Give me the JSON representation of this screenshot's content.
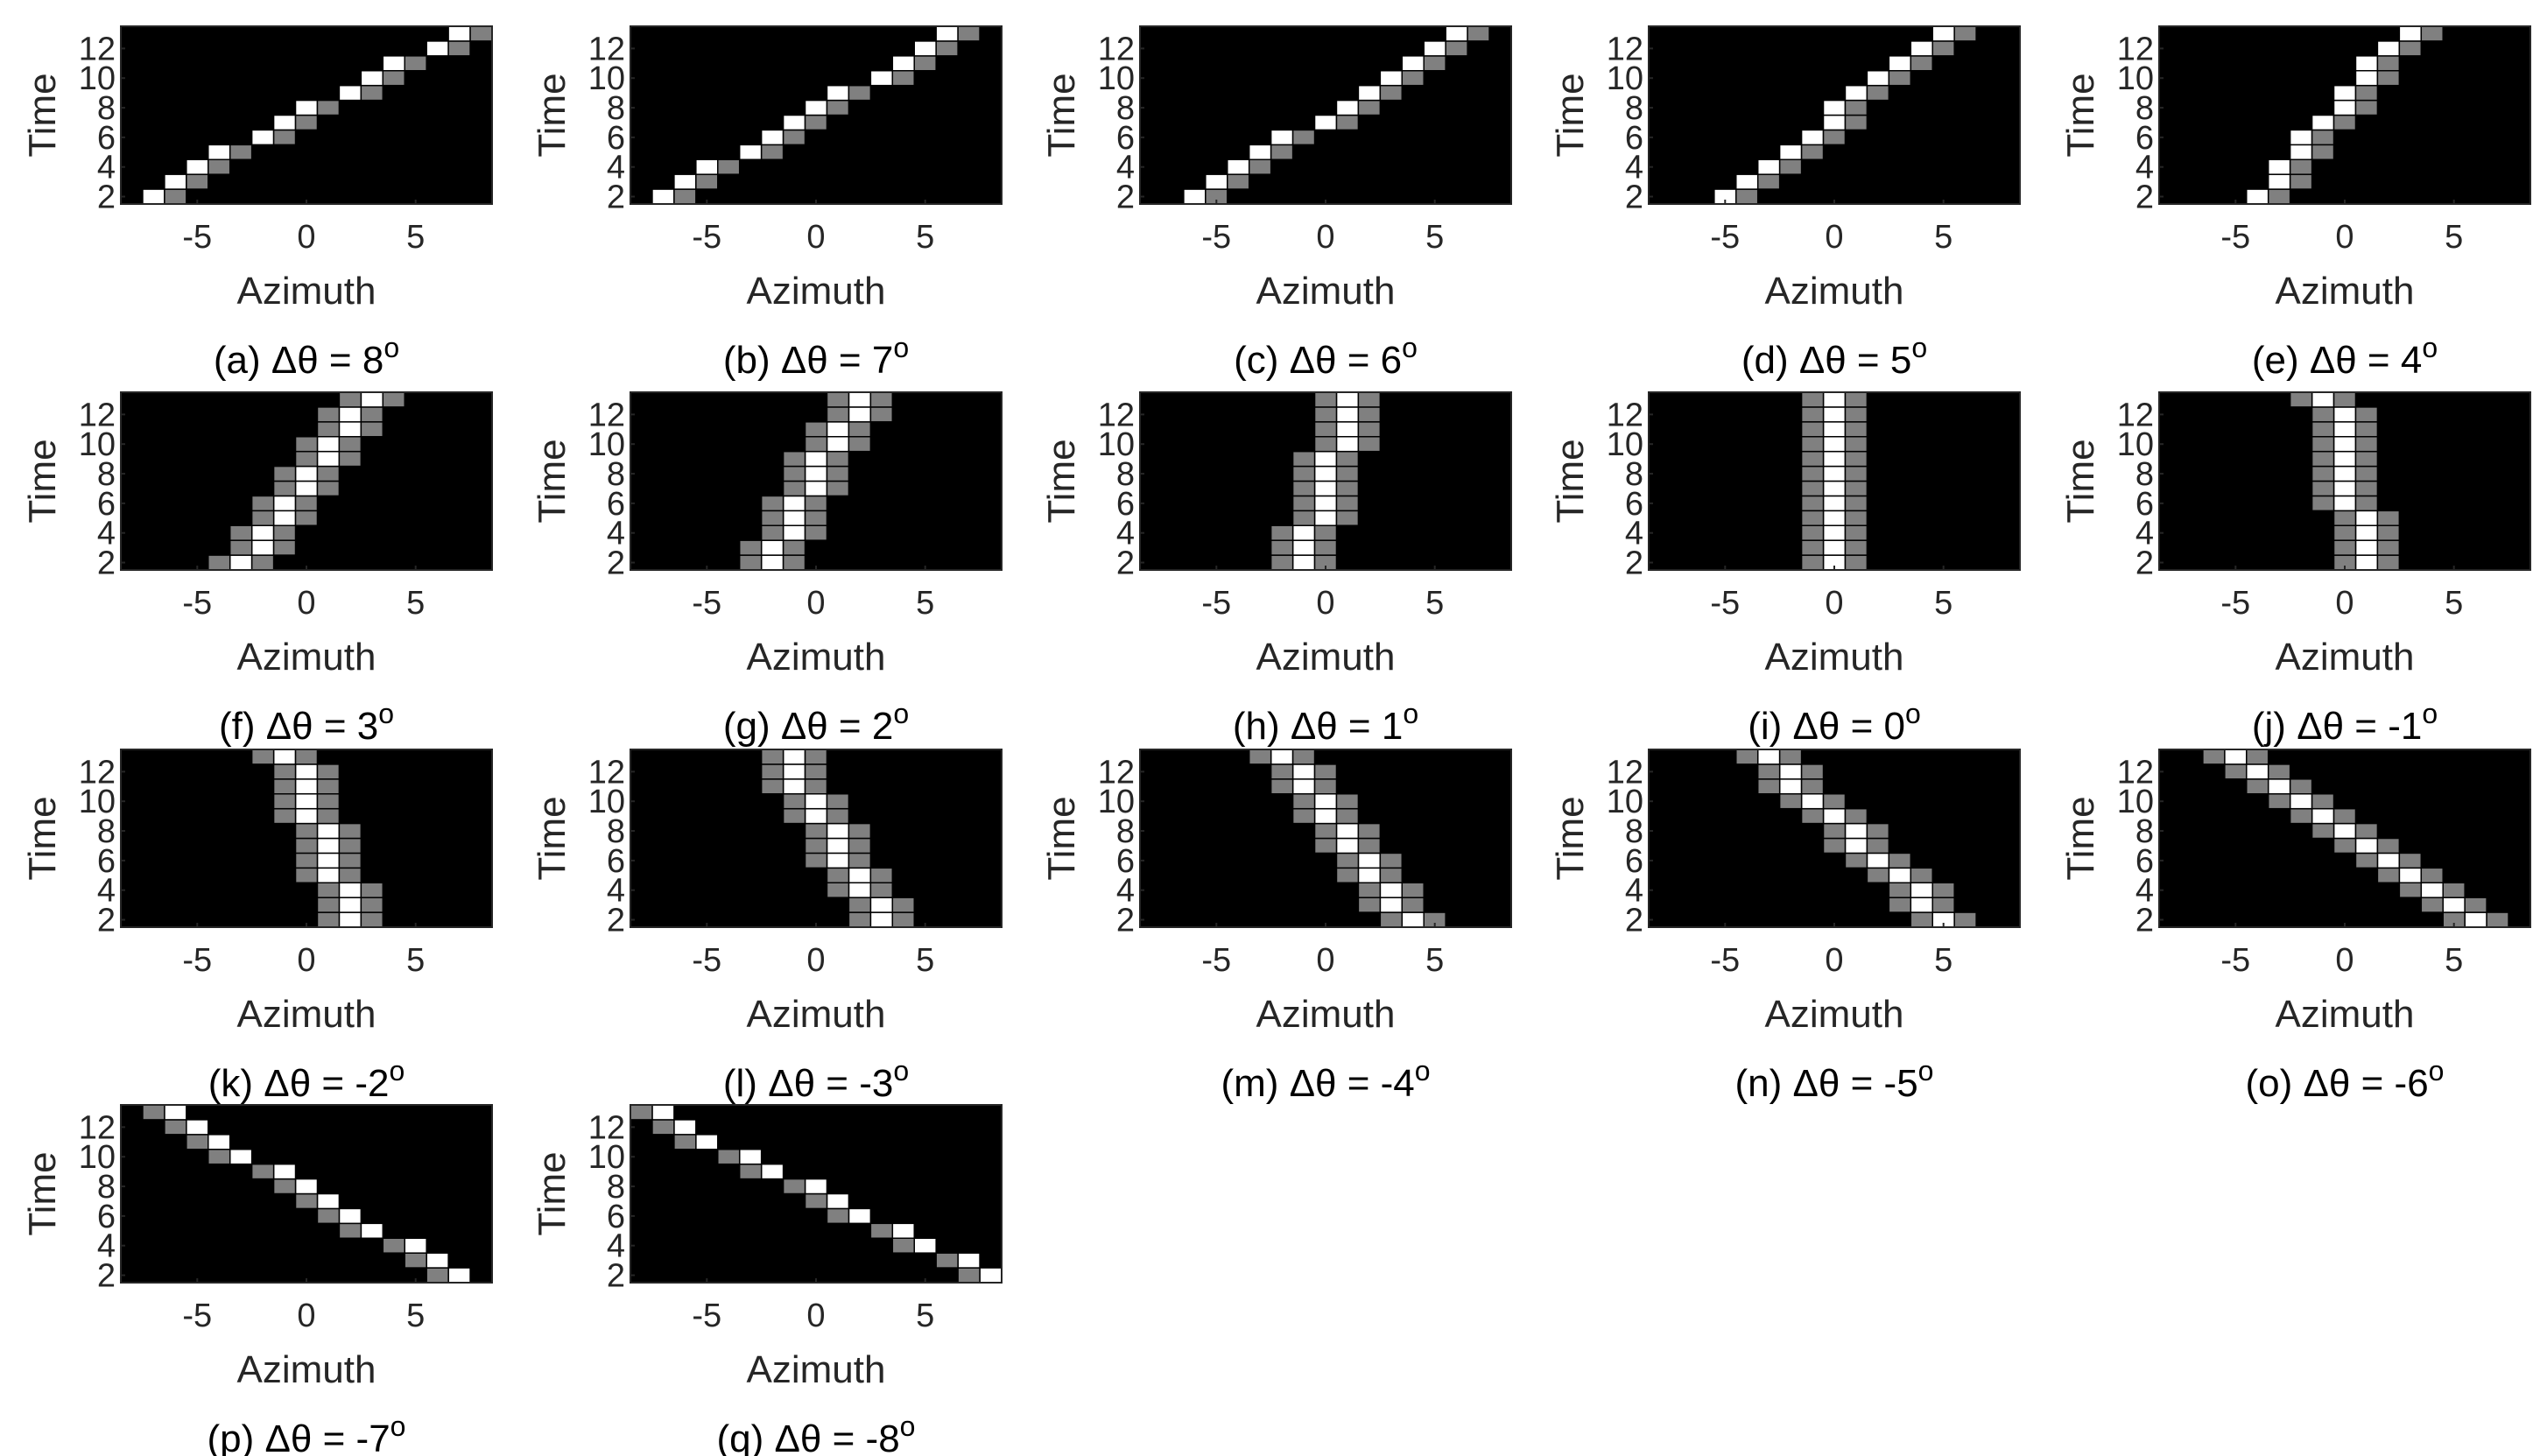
{
  "figure": {
    "xlabel": "Azimuth",
    "ylabel": "Time",
    "caption_prefix": "Δθ = ",
    "caption_degree": "o"
  },
  "chart_data": {
    "type": "heatmap",
    "xlim": [
      -8.5,
      8.5
    ],
    "ylim": [
      1.5,
      13.5
    ],
    "xticks": [
      -5,
      0,
      5
    ],
    "yticks": [
      2,
      4,
      6,
      8,
      10,
      12
    ],
    "x_step": 1,
    "time_steps": [
      2,
      3,
      4,
      5,
      6,
      7,
      8,
      9,
      10,
      11,
      12,
      13
    ],
    "cell_levels": {
      "background": 0,
      "neighbor": 0.5,
      "peak": 1
    },
    "colors": {
      "background": "#000000",
      "neighbor": "#808080",
      "peak": "#ffffff"
    },
    "panels": [
      {
        "label": "(a)",
        "delta": "8",
        "slope": 1.3,
        "peak_at_t2": -7.5,
        "neighbors": "right"
      },
      {
        "label": "(b)",
        "delta": "7",
        "slope": 1.2,
        "peak_at_t2": -7,
        "neighbors": "right"
      },
      {
        "label": "(c)",
        "delta": "6",
        "slope": 1.1,
        "peak_at_t2": -6,
        "neighbors": "right"
      },
      {
        "label": "(d)",
        "delta": "5",
        "slope": 0.9,
        "peak_at_t2": -5,
        "neighbors": "right"
      },
      {
        "label": "(e)",
        "delta": "4",
        "slope": 0.6,
        "peak_at_t2": -4,
        "neighbors": "right"
      },
      {
        "label": "(f)",
        "delta": "3",
        "slope": 0.5,
        "peak_at_t2": -3,
        "neighbors": "both"
      },
      {
        "label": "(g)",
        "delta": "2",
        "slope": 0.35,
        "peak_at_t2": -2,
        "neighbors": "both"
      },
      {
        "label": "(h)",
        "delta": "1",
        "slope": 0.2,
        "peak_at_t2": -1,
        "neighbors": "both"
      },
      {
        "label": "(i)",
        "delta": "0",
        "slope": 0,
        "peak_at_t2": 0,
        "neighbors": "both"
      },
      {
        "label": "(j)",
        "delta": "-1",
        "slope": -0.15,
        "peak_at_t2": 1,
        "neighbors": "both"
      },
      {
        "label": "(k)",
        "delta": "-2",
        "slope": -0.25,
        "peak_at_t2": 2,
        "neighbors": "both"
      },
      {
        "label": "(l)",
        "delta": "-3",
        "slope": -0.4,
        "peak_at_t2": 3,
        "neighbors": "both"
      },
      {
        "label": "(m)",
        "delta": "-4",
        "slope": -0.55,
        "peak_at_t2": 4,
        "neighbors": "both"
      },
      {
        "label": "(n)",
        "delta": "-5",
        "slope": -0.75,
        "peak_at_t2": 5,
        "neighbors": "both"
      },
      {
        "label": "(o)",
        "delta": "-6",
        "slope": -1.0,
        "peak_at_t2": 6,
        "neighbors": "both"
      },
      {
        "label": "(p)",
        "delta": "-7",
        "slope": -1.2,
        "peak_at_t2": 7,
        "neighbors": "left"
      },
      {
        "label": "(q)",
        "delta": "-8",
        "slope": -1.4,
        "peak_at_t2": 8,
        "neighbors": "left"
      }
    ]
  }
}
